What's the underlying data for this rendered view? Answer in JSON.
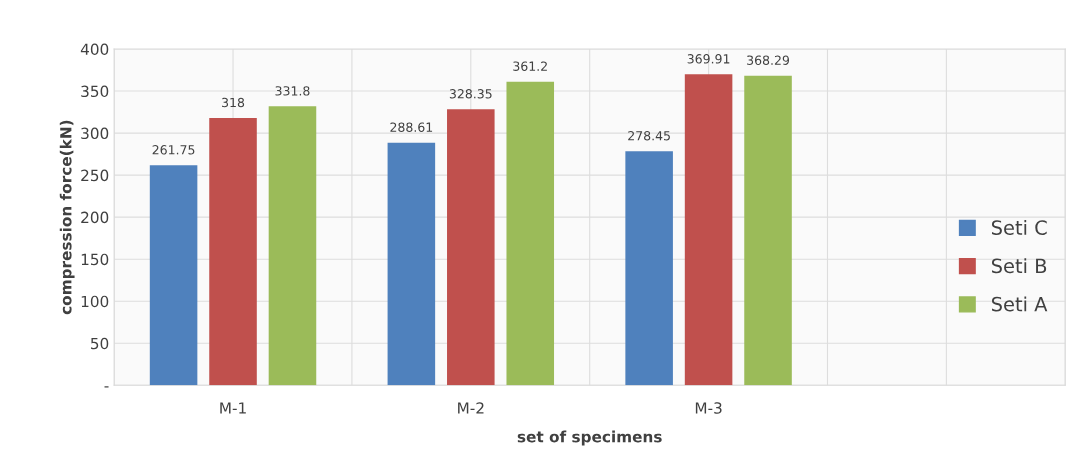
{
  "chart_data": {
    "type": "bar",
    "xlabel": "set of specimens",
    "ylabel": "compression force(kN)",
    "categories": [
      "M-1",
      "M-2",
      "M-3",
      null
    ],
    "series": [
      {
        "name": "Seti C",
        "color": "#4f81bd",
        "values": [
          261.75,
          288.61,
          278.45,
          null
        ]
      },
      {
        "name": "Seti B",
        "color": "#c0504d",
        "values": [
          318,
          328.35,
          369.91,
          null
        ]
      },
      {
        "name": "Seti A",
        "color": "#9bbb59",
        "values": [
          331.8,
          361.2,
          368.29,
          null
        ]
      }
    ],
    "ylim": [
      0,
      400
    ],
    "yticks": [
      {
        "value": 0,
        "label": "-"
      },
      50,
      100,
      150,
      200,
      250,
      300,
      350,
      400
    ],
    "data_labels": true,
    "grid": true,
    "legend": "right"
  }
}
